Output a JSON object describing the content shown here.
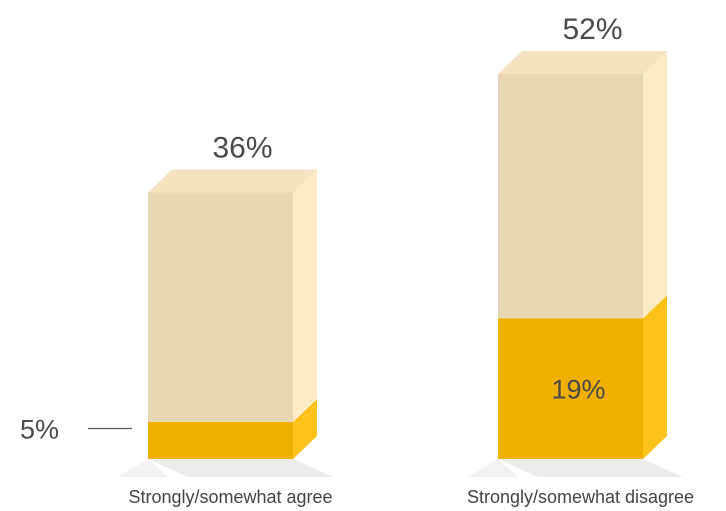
{
  "chart_data": {
    "type": "bar",
    "stacked": true,
    "style": "3d-box",
    "categories": [
      "Strongly/somewhat agree",
      "Strongly/somewhat disagree"
    ],
    "totals": [
      36,
      52
    ],
    "series": [
      {
        "values": [
          5,
          19
        ],
        "color": "#f0b000"
      },
      {
        "values": [
          31,
          33
        ],
        "color": "#e8d7b4"
      }
    ],
    "value_labels": {
      "total": [
        "36%",
        "52%"
      ],
      "highlight": [
        "5%",
        "19%"
      ]
    },
    "ylim": [
      0,
      52
    ],
    "grid": false,
    "legend": "none"
  }
}
